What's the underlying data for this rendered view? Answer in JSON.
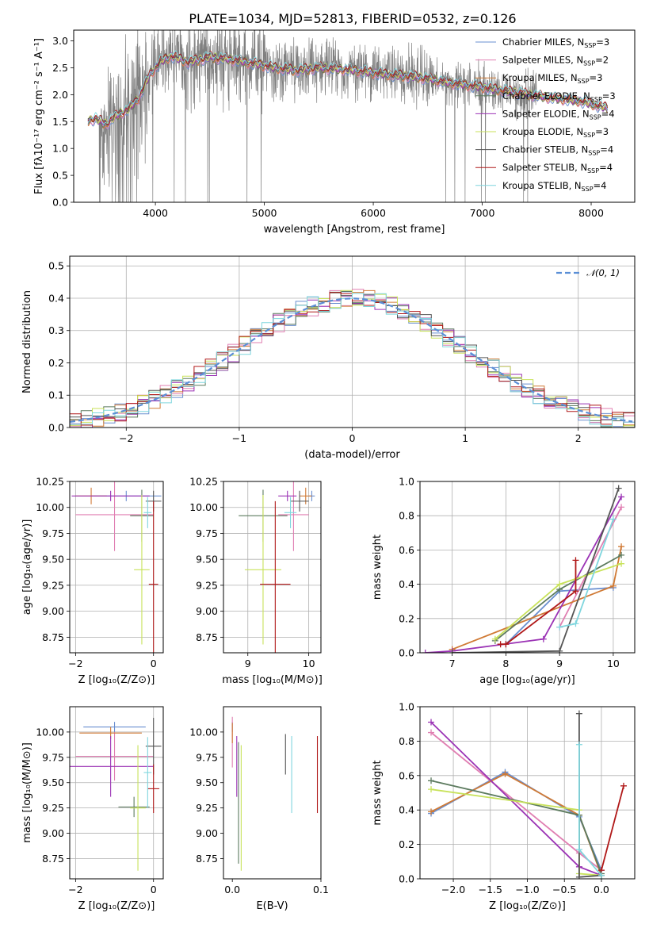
{
  "figure": {
    "title": "PLATE=1034, MJD=52813, FIBERID=0532, z=0.126",
    "colors": {
      "chab_miles": "#6a8fd0",
      "salp_miles": "#e07fb2",
      "krou_miles": "#d07a35",
      "chab_elodie": "#5c7a5e",
      "salp_elodie": "#9b33b5",
      "krou_elodie": "#c8e25a",
      "chab_stelib": "#555555",
      "salp_stelib": "#b01818",
      "krou_stelib": "#7fd6de",
      "data": "#808080",
      "normal": "#5b8fd6"
    }
  },
  "chart_data": [
    {
      "id": "spectrum",
      "type": "line",
      "xlabel": "wavelength [Angstrom, rest frame]",
      "ylabel": "Flux [fλ10⁻¹⁷ erg cm⁻² s⁻¹ A⁻¹]",
      "xlim": [
        3250,
        8400
      ],
      "ylim": [
        0,
        3.2
      ],
      "xticks": [
        4000,
        5000,
        6000,
        7000,
        8000
      ],
      "yticks": [
        "0.0",
        "0.5",
        "1.0",
        "1.5",
        "2.0",
        "2.5",
        "3.0"
      ],
      "continuum": [
        [
          3380,
          1.52
        ],
        [
          3450,
          1.55
        ],
        [
          3550,
          1.45
        ],
        [
          3650,
          1.62
        ],
        [
          3750,
          1.72
        ],
        [
          3850,
          1.95
        ],
        [
          3950,
          2.38
        ],
        [
          4050,
          2.62
        ],
        [
          4150,
          2.72
        ],
        [
          4300,
          2.6
        ],
        [
          4500,
          2.7
        ],
        [
          4700,
          2.65
        ],
        [
          4900,
          2.58
        ],
        [
          5100,
          2.5
        ],
        [
          5300,
          2.45
        ],
        [
          5500,
          2.5
        ],
        [
          5800,
          2.46
        ],
        [
          6100,
          2.38
        ],
        [
          6400,
          2.33
        ],
        [
          6700,
          2.22
        ],
        [
          7000,
          2.14
        ],
        [
          7300,
          2.04
        ],
        [
          7600,
          1.95
        ],
        [
          7900,
          1.88
        ],
        [
          8150,
          1.75
        ]
      ],
      "legend": [
        {
          "name": "Chabrier MILES, N",
          "sub": "SSP",
          "val": "=3",
          "color": "chab_miles"
        },
        {
          "name": "Salpeter MILES, N",
          "sub": "SSP",
          "val": "=2",
          "color": "salp_miles"
        },
        {
          "name": "Kroupa MILES, N",
          "sub": "SSP",
          "val": "=3",
          "color": "krou_miles"
        },
        {
          "name": "Chabrier ELODIE, N",
          "sub": "SSP",
          "val": "=3",
          "color": "chab_elodie"
        },
        {
          "name": "Salpeter ELODIE, N",
          "sub": "SSP",
          "val": "=4",
          "color": "salp_elodie"
        },
        {
          "name": "Kroupa ELODIE, N",
          "sub": "SSP",
          "val": "=3",
          "color": "krou_elodie"
        },
        {
          "name": "Chabrier STELIB, N",
          "sub": "SSP",
          "val": "=4",
          "color": "chab_stelib"
        },
        {
          "name": "Salpeter STELIB, N",
          "sub": "SSP",
          "val": "=4",
          "color": "salp_stelib"
        },
        {
          "name": "Kroupa STELIB, N",
          "sub": "SSP",
          "val": "=4",
          "color": "krou_stelib"
        }
      ]
    },
    {
      "id": "residuals",
      "type": "line",
      "xlabel": "(data-model)/error",
      "ylabel": "Normed distribution",
      "xlim": [
        -2.5,
        2.5
      ],
      "ylim": [
        0,
        0.53
      ],
      "xticks": [
        "−2",
        "−1",
        "0",
        "1",
        "2"
      ],
      "xtickvals": [
        -2,
        -1,
        0,
        1,
        2
      ],
      "yticks": [
        "0.0",
        "0.1",
        "0.2",
        "0.3",
        "0.4",
        "0.5"
      ],
      "ytickvals": [
        0,
        0.1,
        0.2,
        0.3,
        0.4,
        0.5
      ],
      "legend": "𝒩(0, 1)",
      "bin_width": 0.1
    },
    {
      "id": "age_vs_Z",
      "type": "scatter",
      "xlabel": "Z [log₁₀(Z/Z⊙)]",
      "ylabel": "age  [log₁₀(age/yr)]",
      "xlim": [
        -2.15,
        0.25
      ],
      "ylim": [
        8.6,
        10.25
      ],
      "xticks": [
        "−2",
        "0"
      ],
      "xtickvals": [
        -2,
        0
      ],
      "yticks": [
        "8.75",
        "9.00",
        "9.25",
        "9.50",
        "9.75",
        "10.00",
        "10.25"
      ],
      "ytickvals": [
        8.75,
        9.0,
        9.25,
        9.5,
        9.75,
        10.0,
        10.25
      ],
      "points": [
        {
          "c": "chab_miles",
          "x": -0.7,
          "xerr": 0.9,
          "y": 10.11,
          "yerr": 0.05
        },
        {
          "c": "salp_miles",
          "x": -1.0,
          "xerr": 1.0,
          "y": 9.93,
          "yerr": 0.35
        },
        {
          "c": "krou_miles",
          "x": -1.6,
          "xerr": 0.4,
          "y": 10.11,
          "yerr": 0.08
        },
        {
          "c": "chab_elodie",
          "x": -0.3,
          "xerr": 0.3,
          "y": 9.92,
          "yerr": 0.25
        },
        {
          "c": "salp_elodie",
          "x": -1.1,
          "xerr": 1.0,
          "y": 10.11,
          "yerr": 0.05
        },
        {
          "c": "krou_elodie",
          "x": -0.3,
          "xerr": 0.2,
          "y": 9.4,
          "yerr": 0.72
        },
        {
          "c": "chab_stelib",
          "x": 0.0,
          "xerr": 0.2,
          "y": 10.06,
          "yerr": 0.1
        },
        {
          "c": "salp_stelib",
          "x": 0.0,
          "xerr": 0.12,
          "y": 9.26,
          "yerr": 0.8
        },
        {
          "c": "krou_stelib",
          "x": -0.15,
          "xerr": 0.1,
          "y": 9.95,
          "yerr": 0.15
        }
      ]
    },
    {
      "id": "age_vs_mass",
      "type": "scatter",
      "xlabel": "mass [log₁₀(M/M⊙)]",
      "ylabel": "",
      "xlim": [
        8.6,
        10.2
      ],
      "ylim": [
        8.6,
        10.25
      ],
      "xticks": [
        "9",
        "10"
      ],
      "xtickvals": [
        9,
        10
      ],
      "yticks": [
        "8.75",
        "9.00",
        "9.25",
        "9.50",
        "9.75",
        "10.00",
        "10.25"
      ],
      "ytickvals": [
        8.75,
        9.0,
        9.25,
        9.5,
        9.75,
        10.0,
        10.25
      ],
      "points": [
        {
          "c": "chab_miles",
          "x": 10.05,
          "xerr": 0.05,
          "y": 10.11,
          "yerr": 0.05
        },
        {
          "c": "salp_miles",
          "x": 9.75,
          "xerr": 0.25,
          "y": 9.93,
          "yerr": 0.35
        },
        {
          "c": "krou_miles",
          "x": 9.95,
          "xerr": 0.1,
          "y": 10.11,
          "yerr": 0.08
        },
        {
          "c": "chab_elodie",
          "x": 9.25,
          "xerr": 0.4,
          "y": 9.92,
          "yerr": 0.25
        },
        {
          "c": "salp_elodie",
          "x": 9.65,
          "xerr": 0.15,
          "y": 10.11,
          "yerr": 0.05
        },
        {
          "c": "krou_elodie",
          "x": 9.25,
          "xerr": 0.3,
          "y": 9.4,
          "yerr": 0.72
        },
        {
          "c": "chab_stelib",
          "x": 9.85,
          "xerr": 0.15,
          "y": 10.06,
          "yerr": 0.1
        },
        {
          "c": "salp_stelib",
          "x": 9.45,
          "xerr": 0.25,
          "y": 9.26,
          "yerr": 0.8
        },
        {
          "c": "krou_stelib",
          "x": 9.7,
          "xerr": 0.1,
          "y": 9.95,
          "yerr": 0.15
        }
      ]
    },
    {
      "id": "weight_vs_age",
      "type": "line",
      "xlabel": "age  [log₁₀(age/yr)]",
      "ylabel": "mass weight",
      "xlim": [
        6.4,
        10.4
      ],
      "ylim": [
        0,
        1.0
      ],
      "xticks": [
        "7",
        "8",
        "9",
        "10"
      ],
      "xtickvals": [
        7,
        8,
        9,
        10
      ],
      "yticks": [
        "0.0",
        "0.2",
        "0.4",
        "0.6",
        "0.8",
        "1.0"
      ],
      "ytickvals": [
        0,
        0.2,
        0.4,
        0.6,
        0.8,
        1.0
      ],
      "series": [
        {
          "c": "chab_miles",
          "x": [
            8.0,
            9.0,
            10.0
          ],
          "y": [
            0.05,
            0.36,
            0.38
          ]
        },
        {
          "c": "salp_miles",
          "x": [
            9.0,
            10.15
          ],
          "y": [
            0.15,
            0.85
          ]
        },
        {
          "c": "krou_miles",
          "x": [
            7.0,
            10.0,
            10.15
          ],
          "y": [
            0.02,
            0.39,
            0.62
          ]
        },
        {
          "c": "chab_elodie",
          "x": [
            7.8,
            9.0,
            10.15
          ],
          "y": [
            0.07,
            0.37,
            0.57
          ]
        },
        {
          "c": "salp_elodie",
          "x": [
            6.5,
            7.0,
            8.7,
            10.15
          ],
          "y": [
            0.0,
            0.01,
            0.08,
            0.91
          ]
        },
        {
          "c": "krou_elodie",
          "x": [
            7.8,
            9.0,
            10.15
          ],
          "y": [
            0.08,
            0.4,
            0.52
          ]
        },
        {
          "c": "chab_stelib",
          "x": [
            7.0,
            9.0,
            10.1
          ],
          "y": [
            0.0,
            0.01,
            0.96
          ]
        },
        {
          "c": "salp_stelib",
          "x": [
            7.9,
            8.0,
            9.3,
            9.3
          ],
          "y": [
            0.05,
            0.05,
            0.36,
            0.54
          ]
        },
        {
          "c": "krou_stelib",
          "x": [
            9.0,
            9.3,
            10.0
          ],
          "y": [
            0.15,
            0.17,
            0.78
          ]
        }
      ]
    },
    {
      "id": "mass_vs_Z",
      "type": "scatter",
      "xlabel": "Z [log₁₀(Z/Z⊙)]",
      "ylabel": "mass [log₁₀(M/M⊙)]",
      "xlim": [
        -2.15,
        0.25
      ],
      "ylim": [
        8.55,
        10.25
      ],
      "xticks": [
        "−2",
        "0"
      ],
      "xtickvals": [
        -2,
        0
      ],
      "yticks": [
        "8.75",
        "9.00",
        "9.25",
        "9.50",
        "9.75",
        "10.00"
      ],
      "ytickvals": [
        8.75,
        9.0,
        9.25,
        9.5,
        9.75,
        10.0
      ],
      "points": [
        {
          "c": "chab_miles",
          "x": -1.0,
          "xerr": 0.8,
          "y": 10.05,
          "yerr": 0.05
        },
        {
          "c": "salp_miles",
          "x": -1.0,
          "xerr": 1.0,
          "y": 9.76,
          "yerr": 0.24
        },
        {
          "c": "krou_miles",
          "x": -1.1,
          "xerr": 0.8,
          "y": 9.99,
          "yerr": 0.06
        },
        {
          "c": "chab_elodie",
          "x": -0.5,
          "xerr": 0.4,
          "y": 9.26,
          "yerr": 0.1
        },
        {
          "c": "salp_elodie",
          "x": -1.1,
          "xerr": 1.1,
          "y": 9.66,
          "yerr": 0.3
        },
        {
          "c": "krou_elodie",
          "x": -0.4,
          "xerr": 0.2,
          "y": 9.25,
          "yerr": 0.62
        },
        {
          "c": "chab_stelib",
          "x": 0.0,
          "xerr": 0.2,
          "y": 9.86,
          "yerr": 0.28
        },
        {
          "c": "salp_stelib",
          "x": 0.0,
          "xerr": 0.15,
          "y": 9.44,
          "yerr": 0.24
        },
        {
          "c": "krou_stelib",
          "x": -0.15,
          "xerr": 0.1,
          "y": 9.6,
          "yerr": 0.35
        }
      ]
    },
    {
      "id": "mass_vs_ebv",
      "type": "scatter",
      "xlabel": "E(B-V)",
      "ylabel": "",
      "xlim": [
        -0.01,
        0.1
      ],
      "ylim": [
        8.55,
        10.25
      ],
      "xticks": [
        "0.0",
        "0.1"
      ],
      "xtickvals": [
        0.0,
        0.1
      ],
      "yticks": [
        "8.75",
        "9.00",
        "9.25",
        "9.50",
        "9.75",
        "10.00"
      ],
      "ytickvals": [
        8.75,
        9.0,
        9.25,
        9.5,
        9.75,
        10.0
      ],
      "points": [
        {
          "c": "chab_miles",
          "x": 0.0,
          "xerr": 0,
          "y": 10.05,
          "yerr": 0.05
        },
        {
          "c": "salp_miles",
          "x": 0.0,
          "xerr": 0,
          "y": 9.9,
          "yerr": 0.25
        },
        {
          "c": "krou_miles",
          "x": 0.0,
          "xerr": 0,
          "y": 9.99,
          "yerr": 0.1
        },
        {
          "c": "chab_elodie",
          "x": 0.007,
          "xerr": 0,
          "y": 9.3,
          "yerr": 0.6
        },
        {
          "c": "salp_elodie",
          "x": 0.005,
          "xerr": 0,
          "y": 9.66,
          "yerr": 0.3
        },
        {
          "c": "krou_elodie",
          "x": 0.01,
          "xerr": 0,
          "y": 9.25,
          "yerr": 0.62
        },
        {
          "c": "chab_stelib",
          "x": 0.06,
          "xerr": 0,
          "y": 9.78,
          "yerr": 0.2
        },
        {
          "c": "salp_stelib",
          "x": 0.096,
          "xerr": 0,
          "y": 9.58,
          "yerr": 0.38
        },
        {
          "c": "krou_stelib",
          "x": 0.067,
          "xerr": 0,
          "y": 9.58,
          "yerr": 0.38
        }
      ]
    },
    {
      "id": "weight_vs_Z",
      "type": "line",
      "xlabel": "Z [log₁₀(Z/Z⊙)]",
      "ylabel": "mass weight",
      "xlim": [
        -2.45,
        0.45
      ],
      "ylim": [
        0,
        1.0
      ],
      "xticks": [
        "−2.0",
        "−1.5",
        "−1.0",
        "−0.5",
        "0.0"
      ],
      "xtickvals": [
        -2.0,
        -1.5,
        -1.0,
        -0.5,
        0.0
      ],
      "yticks": [
        "0.0",
        "0.2",
        "0.4",
        "0.6",
        "0.8",
        "1.0"
      ],
      "ytickvals": [
        0,
        0.2,
        0.4,
        0.6,
        0.8,
        1.0
      ],
      "series": [
        {
          "c": "chab_miles",
          "x": [
            -2.3,
            -1.3,
            -0.3,
            0.0
          ],
          "y": [
            0.38,
            0.62,
            0.36,
            0.05
          ]
        },
        {
          "c": "salp_miles",
          "x": [
            -2.3,
            -0.3,
            0.0
          ],
          "y": [
            0.85,
            0.15,
            0.05
          ]
        },
        {
          "c": "krou_miles",
          "x": [
            -2.3,
            -1.3,
            -0.3,
            0.0
          ],
          "y": [
            0.39,
            0.61,
            0.37,
            0.02
          ]
        },
        {
          "c": "chab_elodie",
          "x": [
            -2.3,
            -0.3,
            0.0
          ],
          "y": [
            0.57,
            0.37,
            0.03
          ]
        },
        {
          "c": "salp_elodie",
          "x": [
            -2.3,
            -0.3,
            0.0
          ],
          "y": [
            0.91,
            0.07,
            0.02
          ]
        },
        {
          "c": "krou_elodie",
          "x": [
            -2.3,
            -0.3,
            -0.3,
            0.0
          ],
          "y": [
            0.52,
            0.4,
            0.03,
            0.02
          ]
        },
        {
          "c": "chab_stelib",
          "x": [
            -0.3,
            -0.3,
            0.0
          ],
          "y": [
            0.96,
            0.01,
            0.02
          ]
        },
        {
          "c": "salp_stelib",
          "x": [
            0.0,
            0.3
          ],
          "y": [
            0.05,
            0.54
          ]
        },
        {
          "c": "krou_stelib",
          "x": [
            -0.3,
            -0.3,
            0.0
          ],
          "y": [
            0.78,
            0.17,
            0.02
          ]
        }
      ]
    }
  ]
}
